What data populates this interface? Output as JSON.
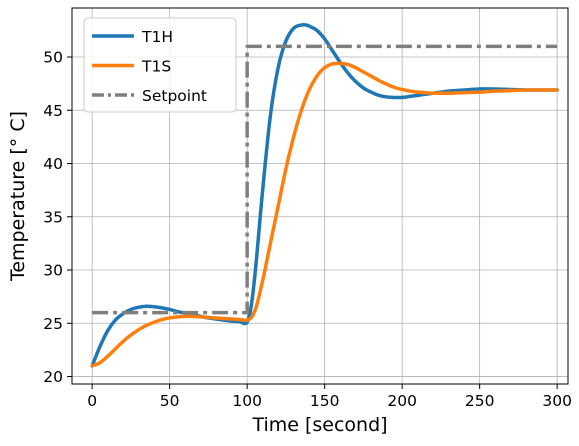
{
  "chart_data": {
    "type": "line",
    "xlabel": "Time [second]",
    "ylabel": "Temperature [° C]",
    "xlim": [
      -13,
      307
    ],
    "ylim": [
      19.3,
      54.6
    ],
    "xticks": [
      0,
      50,
      100,
      150,
      200,
      250,
      300
    ],
    "yticks": [
      20,
      25,
      30,
      35,
      40,
      45,
      50
    ],
    "grid": true,
    "legend_position": "upper-left",
    "series": [
      {
        "name": "T1H",
        "color": "#1f77b4",
        "style": "solid",
        "x": [
          0,
          5,
          10,
          15,
          20,
          25,
          30,
          35,
          40,
          45,
          50,
          55,
          60,
          65,
          70,
          75,
          80,
          85,
          90,
          95,
          100,
          103,
          106,
          110,
          115,
          120,
          125,
          130,
          135,
          138,
          140,
          145,
          150,
          155,
          160,
          165,
          170,
          175,
          180,
          185,
          190,
          195,
          200,
          205,
          210,
          215,
          220,
          225,
          230,
          240,
          250,
          260,
          270,
          280,
          290,
          300
        ],
        "y": [
          21.0,
          22.8,
          24.3,
          25.3,
          25.9,
          26.3,
          26.5,
          26.6,
          26.55,
          26.45,
          26.3,
          26.1,
          25.95,
          25.8,
          25.65,
          25.5,
          25.4,
          25.3,
          25.2,
          25.15,
          25.1,
          27.0,
          31.0,
          37.5,
          44.5,
          49.0,
          51.5,
          52.7,
          53.0,
          53.0,
          52.9,
          52.5,
          51.7,
          50.6,
          49.5,
          48.5,
          47.7,
          47.1,
          46.7,
          46.4,
          46.25,
          46.2,
          46.2,
          46.3,
          46.4,
          46.5,
          46.6,
          46.7,
          46.8,
          46.9,
          47.0,
          47.0,
          46.95,
          46.9,
          46.9,
          46.9
        ]
      },
      {
        "name": "T1S",
        "color": "#ff7f0e",
        "style": "solid",
        "x": [
          0,
          5,
          10,
          15,
          20,
          25,
          30,
          35,
          40,
          45,
          50,
          55,
          60,
          65,
          70,
          75,
          80,
          85,
          90,
          95,
          100,
          103,
          106,
          110,
          115,
          120,
          125,
          130,
          135,
          140,
          145,
          150,
          155,
          160,
          165,
          170,
          175,
          180,
          185,
          190,
          195,
          200,
          205,
          210,
          215,
          220,
          230,
          240,
          250,
          260,
          270,
          280,
          290,
          300
        ],
        "y": [
          21.0,
          21.3,
          21.9,
          22.6,
          23.3,
          23.9,
          24.4,
          24.8,
          25.1,
          25.35,
          25.5,
          25.6,
          25.65,
          25.65,
          25.6,
          25.55,
          25.5,
          25.45,
          25.4,
          25.35,
          25.3,
          25.6,
          26.6,
          29.0,
          32.5,
          36.0,
          39.5,
          42.5,
          45.0,
          46.9,
          48.2,
          49.0,
          49.35,
          49.4,
          49.3,
          49.0,
          48.6,
          48.2,
          47.8,
          47.45,
          47.15,
          46.95,
          46.8,
          46.7,
          46.65,
          46.6,
          46.6,
          46.65,
          46.7,
          46.8,
          46.85,
          46.9,
          46.9,
          46.9
        ]
      },
      {
        "name": "Setpoint",
        "color": "#7f7f7f",
        "style": "dashdot",
        "x": [
          0,
          100,
          100,
          300
        ],
        "y": [
          26,
          26,
          51,
          51
        ]
      }
    ]
  }
}
